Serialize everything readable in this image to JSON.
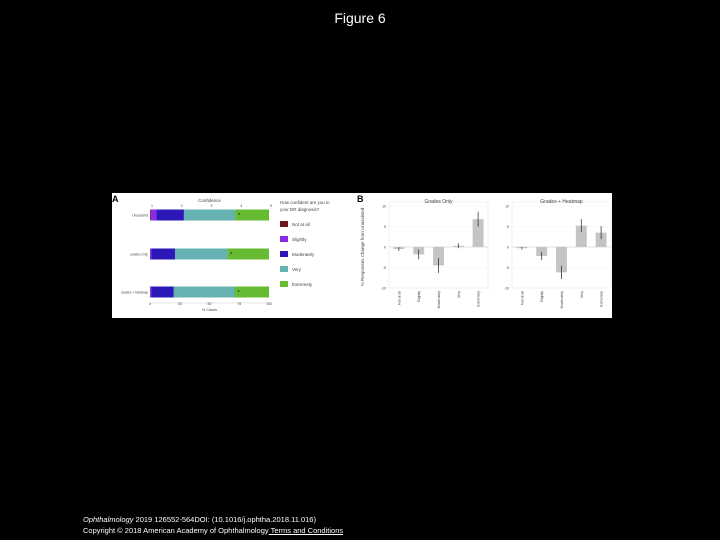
{
  "slide": {
    "title": "Figure 6"
  },
  "footer": {
    "journal": "Ophthalmology",
    "citation": " 2019 126552-564DOI: (10.1016/j.ophtha.2018.11.016)",
    "copyright": "Copyright © 2018 American Academy of Ophthalmology",
    "link_text": " Terms and Conditions"
  },
  "chart_data": [
    {
      "panel": "A",
      "type": "bar",
      "orientation": "horizontal",
      "stacked": true,
      "title": "Confidence",
      "xlabel": "% Cases",
      "top_ticks": [
        "1",
        "2",
        "3",
        "4",
        "5"
      ],
      "x_ticks": [
        "0",
        "25",
        "50",
        "75",
        "100"
      ],
      "xlim": [
        0,
        100
      ],
      "categories": [
        "Unassisted",
        "Grades Only",
        "Grades + Heatmap"
      ],
      "legend_title": "How confident are you in your DR diagnosis?",
      "series": [
        {
          "name": "Not at all",
          "color": "#6b1a1a",
          "values": [
            0.5,
            0,
            0
          ]
        },
        {
          "name": "Slightly",
          "color": "#8a2be2",
          "values": [
            5,
            1,
            1
          ]
        },
        {
          "name": "Moderately",
          "color": "#2c18b8",
          "values": [
            23,
            20,
            19
          ]
        },
        {
          "name": "Very",
          "color": "#66b2b2",
          "values": [
            43,
            44,
            51
          ]
        },
        {
          "name": "Extremely",
          "color": "#66bb33",
          "values": [
            28.5,
            35,
            29
          ]
        }
      ],
      "markers": [
        "*",
        "*",
        "*"
      ]
    },
    {
      "panel": "B",
      "type": "bar",
      "ylabel": "% Responses Change from Unassisted",
      "ylim": [
        -10,
        10
      ],
      "y_ticks": [
        "10",
        "5",
        "0",
        "-5",
        "-10"
      ],
      "categories": [
        "Not at all",
        "Slightly",
        "Moderately",
        "Very",
        "Extremely"
      ],
      "subplots": [
        {
          "title": "Grades Only",
          "values": [
            -0.5,
            -1.8,
            -4.5,
            0.3,
            6.8
          ],
          "errors": [
            0.4,
            1.2,
            1.8,
            0.6,
            1.8
          ]
        },
        {
          "title": "Grades + Heatmap",
          "values": [
            -0.3,
            -2.2,
            -6.2,
            5.2,
            3.5
          ],
          "errors": [
            0.3,
            1.0,
            1.6,
            1.6,
            1.6
          ]
        }
      ]
    }
  ]
}
